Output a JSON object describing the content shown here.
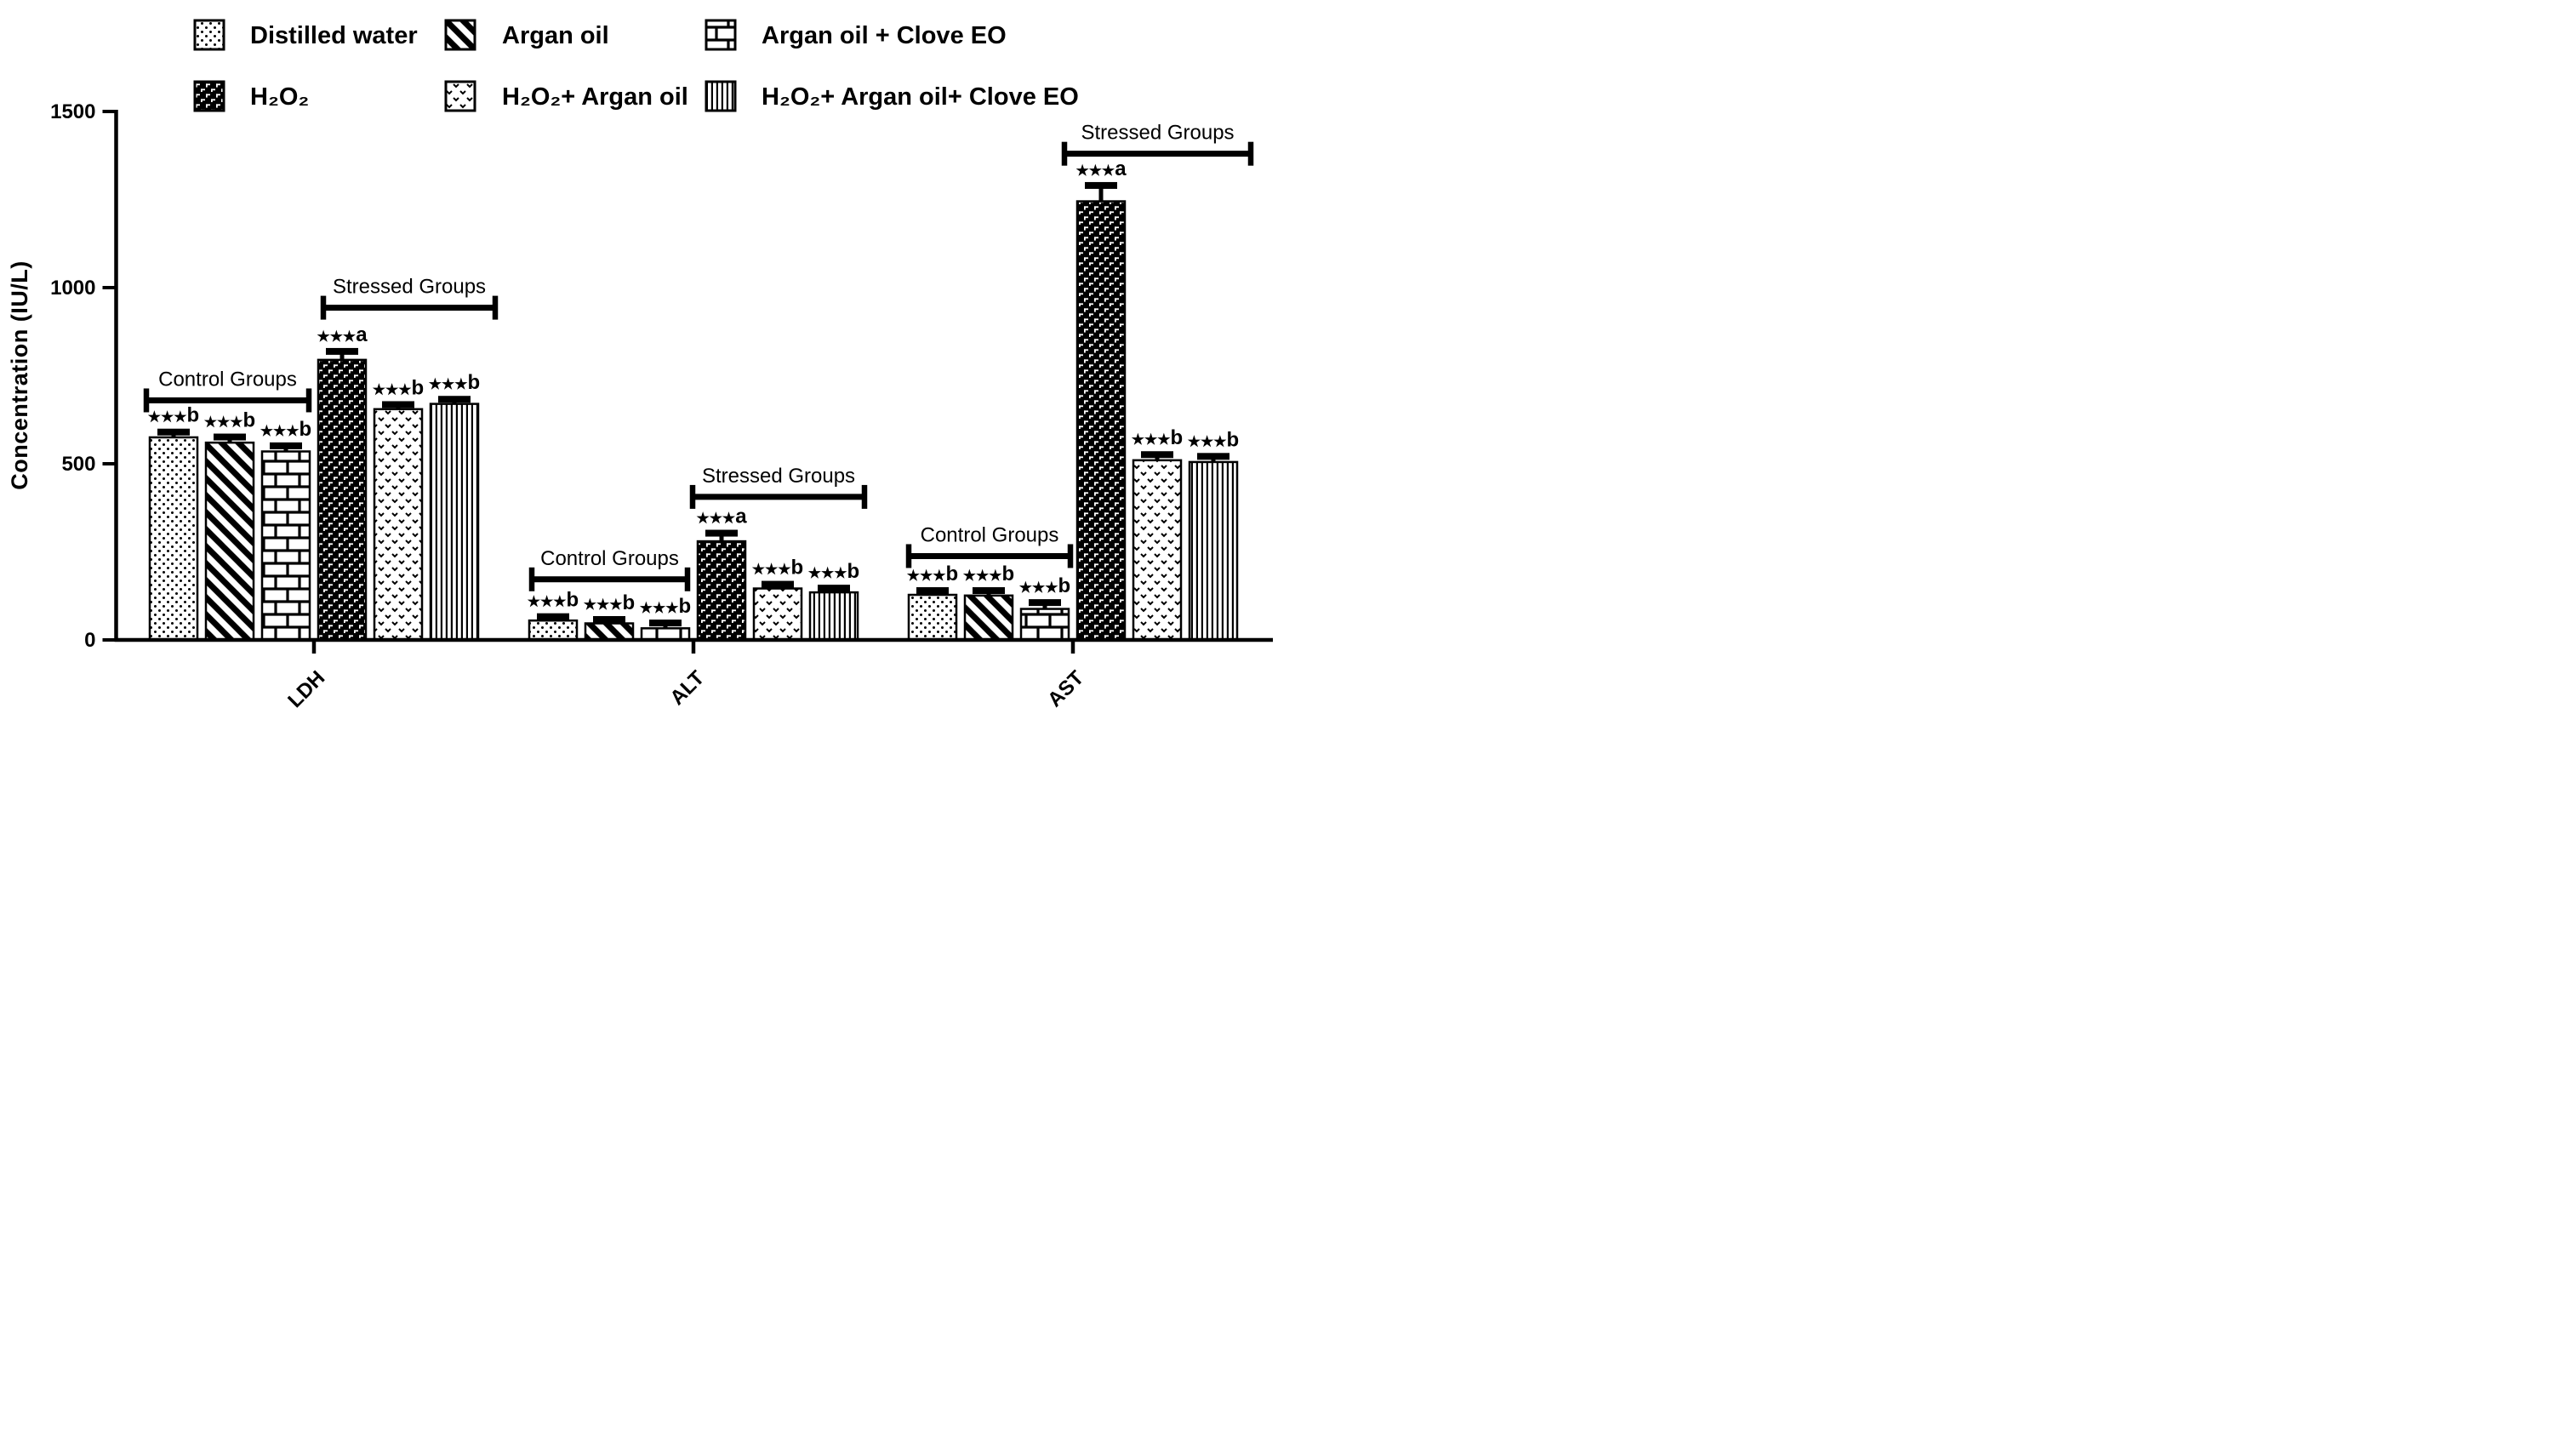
{
  "figure": {
    "background_color": "#ffffff",
    "foreground_color": "#000000"
  },
  "chart_data": {
    "type": "bar",
    "title": "",
    "xlabel": "",
    "ylabel": "Concentration (IU/L)",
    "ylim": [
      0,
      1500
    ],
    "yticks": [
      0,
      500,
      1000,
      1500
    ],
    "grid": false,
    "legend_position": "top",
    "categories": [
      "LDH",
      "ALT",
      "AST"
    ],
    "sig_prefix": "★★★",
    "series": [
      {
        "name": "Distilled water",
        "pattern": "dots",
        "values": [
          575,
          55,
          128
        ],
        "sem": [
          15,
          11,
          12
        ],
        "sig": [
          "b",
          "b",
          "b"
        ]
      },
      {
        "name": "Argan oil",
        "pattern": "diagonal",
        "values": [
          560,
          47,
          126
        ],
        "sem": [
          16,
          11,
          14
        ],
        "sig": [
          "b",
          "b",
          "b"
        ]
      },
      {
        "name": "Argan oil + Clove EO",
        "pattern": "brick",
        "values": [
          535,
          33,
          88
        ],
        "sem": [
          16,
          15,
          18
        ],
        "sig": [
          "b",
          "b",
          "b"
        ]
      },
      {
        "name": "H₂O₂",
        "pattern": "shingle",
        "values": [
          795,
          280,
          1245
        ],
        "sem": [
          24,
          23,
          45
        ],
        "sig": [
          "a",
          "a",
          "a"
        ]
      },
      {
        "name": "H₂O₂+ Argan oil",
        "pattern": "chevron",
        "values": [
          655,
          146,
          510
        ],
        "sem": [
          13,
          12,
          16
        ],
        "sig": [
          "b",
          "b",
          "b"
        ]
      },
      {
        "name": "H₂O₂+ Argan oil+ Clove EO",
        "pattern": "vlines",
        "values": [
          670,
          135,
          505
        ],
        "sem": [
          13,
          12,
          16
        ],
        "sig": [
          "b",
          "b",
          "b"
        ]
      }
    ],
    "brackets": [
      {
        "category": "LDH",
        "label": "Control Groups",
        "series_span": [
          0,
          2
        ],
        "level": 680
      },
      {
        "category": "LDH",
        "label": "Stressed Groups",
        "series_span": [
          3,
          5
        ],
        "level": 943
      },
      {
        "category": "ALT",
        "label": "Control Groups",
        "series_span": [
          0,
          2
        ],
        "level": 172
      },
      {
        "category": "ALT",
        "label": "Stressed Groups",
        "series_span": [
          3,
          5
        ],
        "level": 406
      },
      {
        "category": "AST",
        "label": "Control Groups",
        "series_span": [
          0,
          2
        ],
        "level": 238
      },
      {
        "category": "AST",
        "label": "Stressed Groups",
        "series_span": [
          3,
          5
        ],
        "level": 1380
      }
    ]
  }
}
